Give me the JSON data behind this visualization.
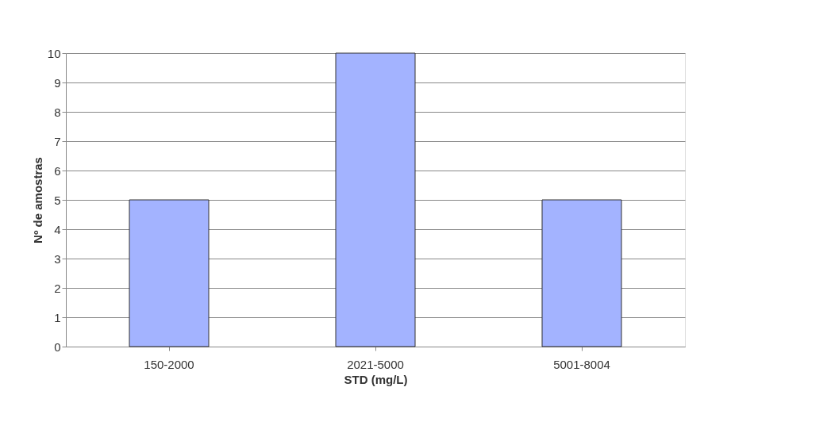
{
  "chart_data": {
    "type": "bar",
    "xlabel": "STD (mg/L)",
    "ylabel": "Nº de amostras",
    "categories": [
      "150-2000",
      "2021-5000",
      "5001-8004"
    ],
    "values": [
      5,
      10,
      5
    ],
    "color": "#a3b3ff",
    "ylim": [
      0,
      10
    ],
    "yticks": [
      0,
      1,
      2,
      3,
      4,
      5,
      6,
      7,
      8,
      9,
      10
    ],
    "grid": "y"
  }
}
